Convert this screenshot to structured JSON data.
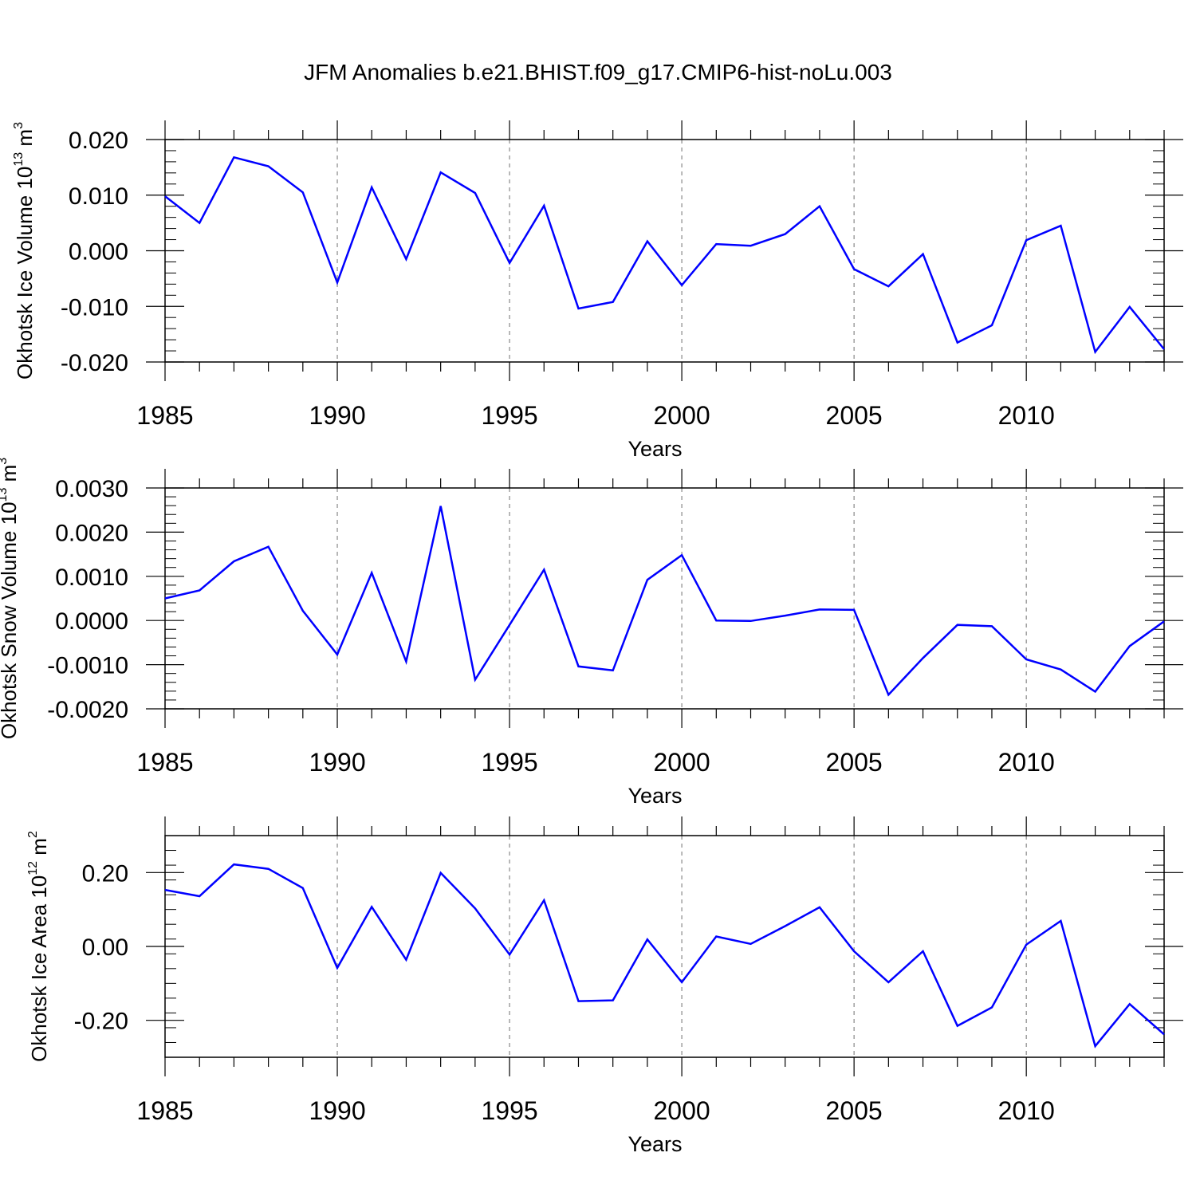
{
  "title": "JFM Anomalies b.e21.BHIST.f09_g17.CMIP6-hist-noLu.003",
  "line_color": "#0000ff",
  "grid_color": "#888888",
  "chart_data": [
    {
      "type": "line",
      "ylabel_main": "Okhotsk Ice Volume 10",
      "ylabel_exp": "13",
      "ylabel_unit": "m",
      "ylabel_unit_exp": "3",
      "xlabel": "Years",
      "xlim": [
        1985,
        2014
      ],
      "ylim": [
        -0.02,
        0.02
      ],
      "yticks": [
        -0.02,
        -0.01,
        0.0,
        0.01,
        0.02
      ],
      "ytick_labels": [
        "-0.020",
        "-0.010",
        "0.000",
        "0.010",
        "0.020"
      ],
      "xticks": [
        1985,
        1990,
        1995,
        2000,
        2005,
        2010
      ],
      "xtick_labels": [
        "1985",
        "1990",
        "1995",
        "2000",
        "2005",
        "2010"
      ],
      "x": [
        1985,
        1986,
        1987,
        1988,
        1989,
        1990,
        1991,
        1992,
        1993,
        1994,
        1995,
        1996,
        1997,
        1998,
        1999,
        2000,
        2001,
        2002,
        2003,
        2004,
        2005,
        2006,
        2007,
        2008,
        2009,
        2010,
        2011,
        2012,
        2013,
        2014
      ],
      "y": [
        0.0098,
        0.005,
        0.0168,
        0.0152,
        0.0105,
        -0.0057,
        0.0114,
        -0.0015,
        0.0141,
        0.0104,
        -0.0022,
        0.0081,
        -0.0104,
        -0.0092,
        0.0017,
        -0.0062,
        0.0012,
        0.0009,
        0.003,
        0.008,
        -0.0033,
        -0.0064,
        -0.0006,
        -0.0165,
        -0.0134,
        0.0019,
        0.0045,
        -0.0182,
        -0.0101,
        -0.0177
      ]
    },
    {
      "type": "line",
      "ylabel_main": "Okhotsk Snow Volume 10",
      "ylabel_exp": "13",
      "ylabel_unit": "m",
      "ylabel_unit_exp": "3",
      "xlabel": "Years",
      "xlim": [
        1985,
        2014
      ],
      "ylim": [
        -0.002,
        0.003
      ],
      "yticks": [
        -0.002,
        -0.001,
        0.0,
        0.001,
        0.002,
        0.003
      ],
      "ytick_labels": [
        "-0.0020",
        "-0.0010",
        "0.0000",
        "0.0010",
        "0.0020",
        "0.0030"
      ],
      "xticks": [
        1985,
        1990,
        1995,
        2000,
        2005,
        2010
      ],
      "xtick_labels": [
        "1985",
        "1990",
        "1995",
        "2000",
        "2005",
        "2010"
      ],
      "x": [
        1985,
        1986,
        1987,
        1988,
        1989,
        1990,
        1991,
        1992,
        1993,
        1994,
        1995,
        1996,
        1997,
        1998,
        1999,
        2000,
        2001,
        2002,
        2003,
        2004,
        2005,
        2006,
        2007,
        2008,
        2009,
        2010,
        2011,
        2012,
        2013,
        2014
      ],
      "y": [
        0.0005,
        0.00068,
        0.00134,
        0.00167,
        0.00022,
        -0.00077,
        0.00108,
        -0.00093,
        0.00259,
        -0.00134,
        -0.0001,
        0.00115,
        -0.00104,
        -0.00113,
        0.00092,
        0.00148,
        0.0,
        -1e-05,
        0.00011,
        0.00025,
        0.00024,
        -0.00168,
        -0.00085,
        -0.0001,
        -0.00013,
        -0.00088,
        -0.00111,
        -0.00161,
        -0.00058,
        -2e-05
      ]
    },
    {
      "type": "line",
      "ylabel_main": "Okhotsk Ice Area 10",
      "ylabel_exp": "12",
      "ylabel_unit": "m",
      "ylabel_unit_exp": "2",
      "xlabel": "Years",
      "xlim": [
        1985,
        2014
      ],
      "ylim": [
        -0.3,
        0.3
      ],
      "yticks": [
        -0.2,
        0.0,
        0.2
      ],
      "ytick_labels": [
        "-0.20",
        "0.00",
        "0.20"
      ],
      "xticks": [
        1985,
        1990,
        1995,
        2000,
        2005,
        2010
      ],
      "xtick_labels": [
        "1985",
        "1990",
        "1995",
        "2000",
        "2005",
        "2010"
      ],
      "x": [
        1985,
        1986,
        1987,
        1988,
        1989,
        1990,
        1991,
        1992,
        1993,
        1994,
        1995,
        1996,
        1997,
        1998,
        1999,
        2000,
        2001,
        2002,
        2003,
        2004,
        2005,
        2006,
        2007,
        2008,
        2009,
        2010,
        2011,
        2012,
        2013,
        2014
      ],
      "y": [
        0.153,
        0.136,
        0.222,
        0.21,
        0.158,
        -0.058,
        0.107,
        -0.036,
        0.199,
        0.103,
        -0.022,
        0.125,
        -0.148,
        -0.146,
        0.019,
        -0.097,
        0.027,
        0.007,
        0.055,
        0.106,
        -0.013,
        -0.097,
        -0.013,
        -0.215,
        -0.165,
        0.005,
        0.069,
        -0.27,
        -0.156,
        -0.238
      ]
    }
  ]
}
